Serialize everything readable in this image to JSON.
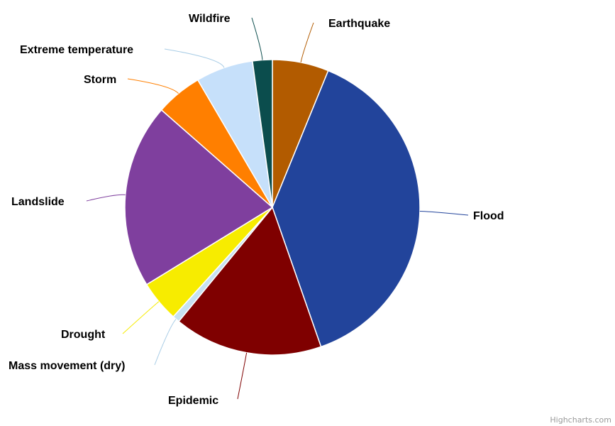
{
  "chart_data": {
    "type": "pie",
    "title": "",
    "legend": "none",
    "slices": [
      {
        "name": "Earthquake",
        "value": 6.3,
        "color": "#b25b00"
      },
      {
        "name": "Flood",
        "value": 39.2,
        "color": "#22449b"
      },
      {
        "name": "Epidemic",
        "value": 16.6,
        "color": "#7f0000"
      },
      {
        "name": "Mass movement (dry)",
        "value": 0.8,
        "color": "#c6e2f2"
      },
      {
        "name": "Drought",
        "value": 4.6,
        "color": "#f7ec00"
      },
      {
        "name": "Landslide",
        "value": 20.6,
        "color": "#7f3f9e"
      },
      {
        "name": "Storm",
        "value": 5.2,
        "color": "#ff7f00"
      },
      {
        "name": "Extreme temperature",
        "value": 6.4,
        "color": "#c6e0fa"
      },
      {
        "name": "Wildfire",
        "value": 2.2,
        "color": "#0b4d4d"
      }
    ]
  },
  "credit": "Highcharts.com"
}
